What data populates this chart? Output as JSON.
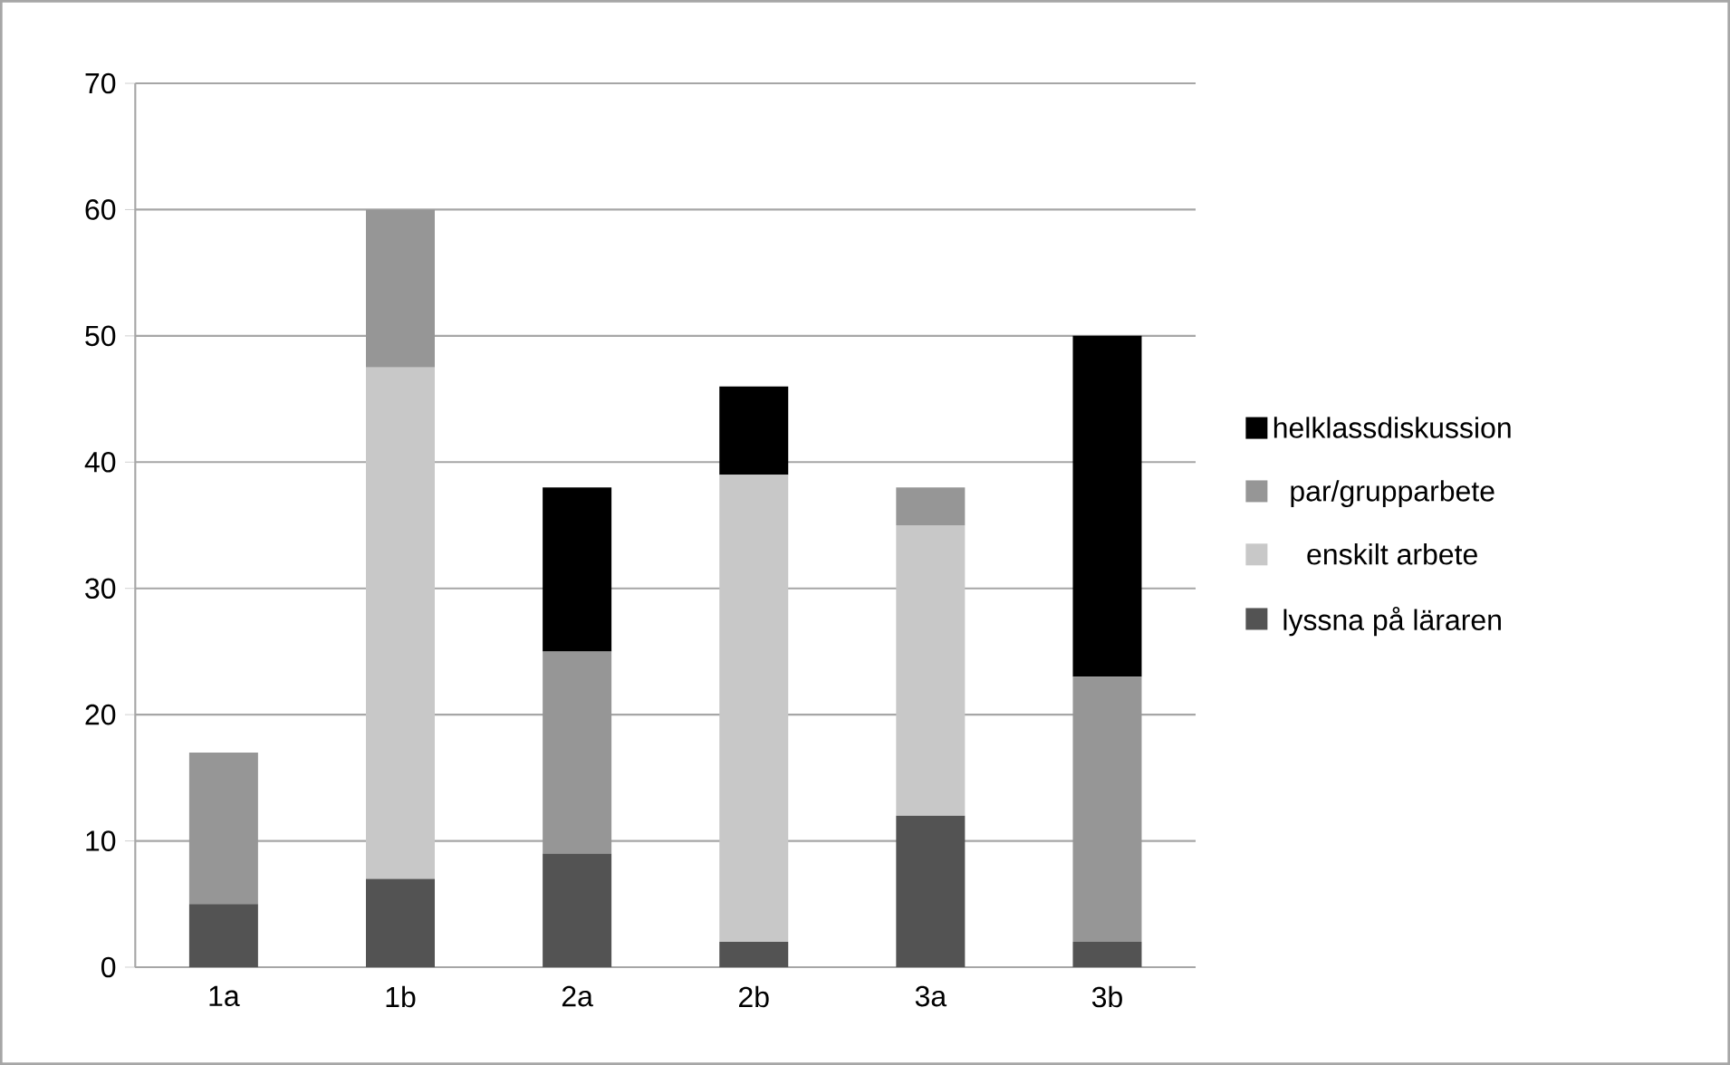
{
  "chart_data": {
    "type": "bar",
    "stacked": true,
    "categories": [
      "1a",
      "1b",
      "2a",
      "2b",
      "3a",
      "3b"
    ],
    "series": [
      {
        "name": "lyssna på läraren",
        "color": "#535353",
        "values": [
          5,
          7,
          9,
          2,
          12,
          2
        ]
      },
      {
        "name": "enskilt arbete",
        "color": "#c8c8c8",
        "values": [
          0,
          40.5,
          0,
          37,
          23,
          0
        ]
      },
      {
        "name": "par/grupparbete",
        "color": "#969696",
        "values": [
          12,
          12.5,
          16,
          0,
          3,
          21
        ]
      },
      {
        "name": "helklassdiskussion",
        "color": "#000000",
        "values": [
          0,
          0,
          13,
          7,
          0,
          27
        ]
      }
    ],
    "ylim": [
      0,
      70
    ],
    "yticks": [
      0,
      10,
      20,
      30,
      40,
      50,
      60,
      70
    ],
    "grid": "y",
    "legend": "right"
  }
}
